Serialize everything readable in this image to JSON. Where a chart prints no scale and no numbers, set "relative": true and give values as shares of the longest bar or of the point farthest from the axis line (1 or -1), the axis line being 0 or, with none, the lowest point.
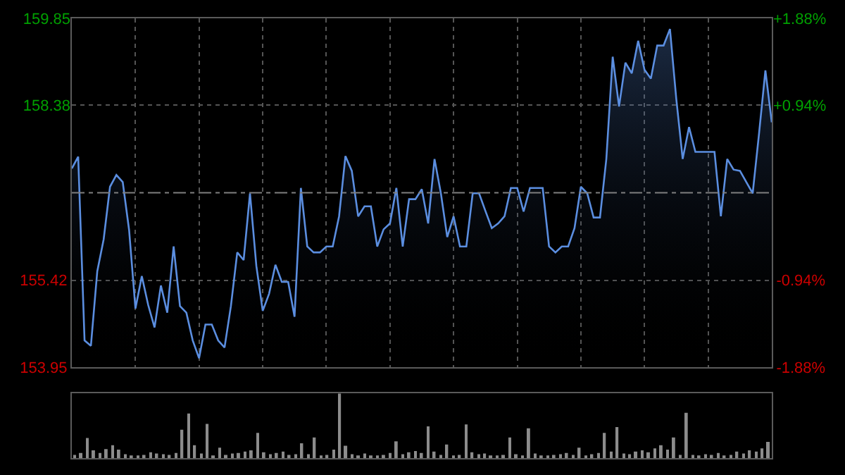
{
  "chart_data": [
    {
      "type": "area",
      "categories": [
        null,
        null,
        null,
        null,
        null,
        null,
        null,
        null,
        null,
        null,
        null,
        null,
        null,
        null,
        null,
        null,
        null,
        null,
        null,
        null,
        null,
        null,
        null,
        null,
        null,
        null,
        null,
        null,
        null,
        null,
        null,
        null,
        null,
        null,
        null,
        null,
        null,
        null,
        null,
        null,
        null,
        null,
        null,
        null,
        null,
        null,
        null,
        null,
        null,
        null,
        null,
        null,
        null,
        null,
        null,
        null,
        null,
        null,
        null,
        null,
        null,
        null,
        null,
        null,
        null,
        null,
        null,
        null,
        null,
        null,
        null,
        null,
        null,
        null,
        null,
        null,
        null,
        null,
        null,
        null,
        null,
        null,
        null,
        null,
        null,
        null,
        null,
        null,
        null,
        null,
        null,
        null,
        null,
        null,
        null,
        null,
        null,
        null,
        null,
        null,
        null,
        null,
        null,
        null,
        null,
        null,
        null,
        null,
        null,
        null,
        null
      ],
      "series": [
        {
          "color": "#5b8ee0",
          "values": [
            157.31,
            157.51,
            154.4,
            154.31,
            155.57,
            156.11,
            157.0,
            157.2,
            157.08,
            156.27,
            154.94,
            155.49,
            155.0,
            154.62,
            155.33,
            154.87,
            155.99,
            154.98,
            154.87,
            154.4,
            154.1,
            154.67,
            154.67,
            154.4,
            154.28,
            154.98,
            155.89,
            155.76,
            156.89,
            155.66,
            154.9,
            155.19,
            155.68,
            155.39,
            155.39,
            154.8,
            156.98,
            155.99,
            155.89,
            155.89,
            155.99,
            155.99,
            156.5,
            157.52,
            157.27,
            156.5,
            156.67,
            156.67,
            155.99,
            156.28,
            156.38,
            156.98,
            155.99,
            156.79,
            156.79,
            156.96,
            156.38,
            157.47,
            156.89,
            156.15,
            156.5,
            155.99,
            155.99,
            156.89,
            156.89,
            156.59,
            156.3,
            156.38,
            156.5,
            156.98,
            156.98,
            156.58,
            156.98,
            156.98,
            156.98,
            155.99,
            155.89,
            155.99,
            155.99,
            156.3,
            157.0,
            156.89,
            156.48,
            156.48,
            157.47,
            159.2,
            158.36,
            159.1,
            158.92,
            159.47,
            158.98,
            158.83,
            159.39,
            159.39,
            159.67,
            158.48,
            157.47,
            158.01,
            157.59,
            157.59,
            157.59,
            157.59,
            156.5,
            157.47,
            157.29,
            157.27,
            157.08,
            156.89,
            157.9,
            158.97,
            158.09
          ]
        }
      ],
      "ylim": [
        153.95,
        159.85
      ],
      "yticks": [
        153.95,
        155.42,
        158.38,
        159.85
      ],
      "y2lim": [
        -1.88,
        1.88
      ],
      "y2ticks": [
        {
          "value": -1.88,
          "label": "-1.88%"
        },
        {
          "value": -0.94,
          "label": "-0.94%"
        },
        {
          "value": 0.94,
          "label": "+0.94%"
        },
        {
          "value": 1.88,
          "label": "+1.88%"
        }
      ],
      "ref_lines": [
        {
          "axis": "y",
          "value": 156.9,
          "color": "#7f7f7f",
          "line_style": "dashdot"
        }
      ],
      "grid": true,
      "marker": "none"
    },
    {
      "type": "bar",
      "relative": true,
      "categories": [
        null,
        null,
        null,
        null,
        null,
        null,
        null,
        null,
        null,
        null,
        null,
        null,
        null,
        null,
        null,
        null,
        null,
        null,
        null,
        null,
        null,
        null,
        null,
        null,
        null,
        null,
        null,
        null,
        null,
        null,
        null,
        null,
        null,
        null,
        null,
        null,
        null,
        null,
        null,
        null,
        null,
        null,
        null,
        null,
        null,
        null,
        null,
        null,
        null,
        null,
        null,
        null,
        null,
        null,
        null,
        null,
        null,
        null,
        null,
        null,
        null,
        null,
        null,
        null,
        null,
        null,
        null,
        null,
        null,
        null,
        null,
        null,
        null,
        null,
        null,
        null,
        null,
        null,
        null,
        null,
        null,
        null,
        null,
        null,
        null,
        null,
        null,
        null,
        null,
        null,
        null,
        null,
        null,
        null,
        null,
        null,
        null,
        null,
        null,
        null,
        null,
        null,
        null,
        null,
        null,
        null,
        null,
        null,
        null,
        null,
        null
      ],
      "series": [
        {
          "color": "#8c8c8c",
          "values": [
            0.05,
            0.08,
            0.31,
            0.12,
            0.08,
            0.14,
            0.2,
            0.13,
            0.06,
            0.04,
            0.03,
            0.05,
            0.09,
            0.07,
            0.06,
            0.05,
            0.08,
            0.44,
            0.69,
            0.2,
            0.07,
            0.53,
            0.04,
            0.16,
            0.05,
            0.07,
            0.08,
            0.1,
            0.12,
            0.39,
            0.09,
            0.06,
            0.08,
            0.1,
            0.05,
            0.06,
            0.23,
            0.06,
            0.32,
            0.04,
            0.05,
            0.13,
            1.0,
            0.19,
            0.06,
            0.04,
            0.07,
            0.03,
            0.04,
            0.05,
            0.08,
            0.26,
            0.06,
            0.09,
            0.11,
            0.08,
            0.49,
            0.1,
            0.05,
            0.21,
            0.04,
            0.05,
            0.52,
            0.09,
            0.06,
            0.07,
            0.04,
            0.03,
            0.05,
            0.32,
            0.06,
            0.04,
            0.46,
            0.07,
            0.03,
            0.04,
            0.05,
            0.06,
            0.08,
            0.05,
            0.16,
            0.04,
            0.06,
            0.08,
            0.39,
            0.1,
            0.48,
            0.07,
            0.06,
            0.1,
            0.12,
            0.09,
            0.15,
            0.2,
            0.13,
            0.32,
            0.05,
            0.7,
            0.05,
            0.04,
            0.06,
            0.05,
            0.08,
            0.04,
            0.05,
            0.1,
            0.07,
            0.12,
            0.1,
            0.15,
            0.25
          ]
        }
      ]
    }
  ]
}
